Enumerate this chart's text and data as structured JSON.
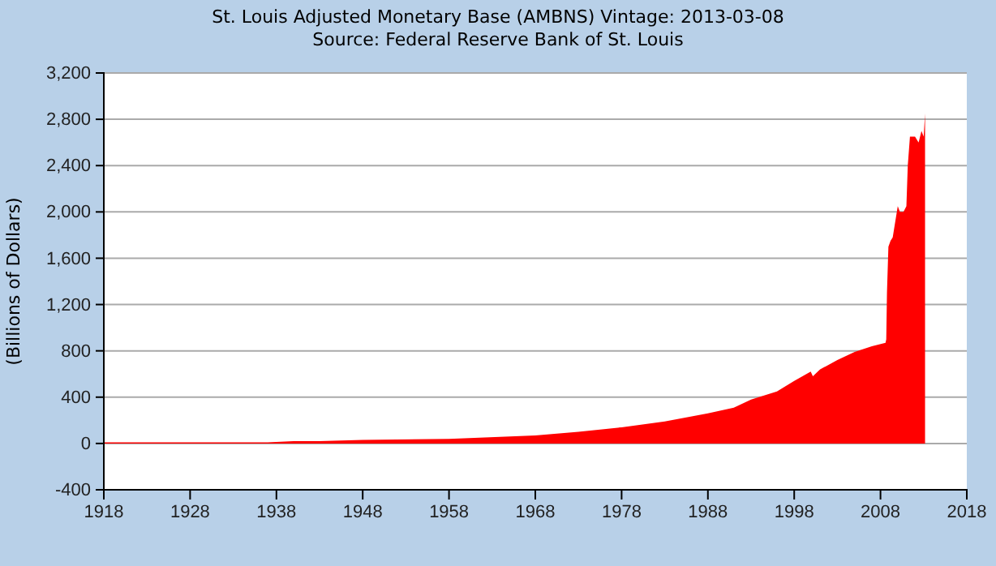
{
  "chart_data": {
    "type": "area",
    "title": "St. Louis Adjusted Monetary Base (AMBNS) Vintage: 2013-03-08",
    "subtitle": "Source: Federal Reserve Bank of St. Louis",
    "ylabel": "(Billions of Dollars)",
    "x": [
      "1918-01",
      "1930-01",
      "1937-01",
      "1940-01",
      "1943-01",
      "1948-01",
      "1958-01",
      "1968-01",
      "1973-01",
      "1978-01",
      "1983-01",
      "1988-01",
      "1991-01",
      "1993-01",
      "1996-01",
      "1998-01",
      "1999-12",
      "2000-03",
      "2001-01",
      "2003-01",
      "2005-01",
      "2007-01",
      "2008-08",
      "2008-09",
      "2008-10",
      "2008-12",
      "2009-03",
      "2009-06",
      "2010-01",
      "2010-04",
      "2010-09",
      "2011-01",
      "2011-03",
      "2011-06",
      "2012-01",
      "2012-06",
      "2012-10",
      "2013-01",
      "2013-02",
      "2013-03"
    ],
    "series": [
      {
        "color": "#ff0000",
        "values": [
          10,
          10,
          10,
          20,
          20,
          30,
          40,
          70,
          100,
          140,
          190,
          260,
          310,
          380,
          450,
          540,
          620,
          580,
          640,
          720,
          790,
          840,
          870,
          900,
          1300,
          1700,
          1750,
          1780,
          2050,
          2000,
          2000,
          2050,
          2400,
          2650,
          2650,
          2600,
          2700,
          2650,
          2750,
          2850
        ]
      }
    ],
    "ylim": [
      -400,
      3200
    ],
    "yticks": [
      {
        "value": -400,
        "label": "-400"
      },
      {
        "value": 0,
        "label": "0"
      },
      {
        "value": 400,
        "label": "400"
      },
      {
        "value": 800,
        "label": "800"
      },
      {
        "value": 1200,
        "label": "1,200"
      },
      {
        "value": 1600,
        "label": "1,600"
      },
      {
        "value": 2000,
        "label": "2,000"
      },
      {
        "value": 2400,
        "label": "2,400"
      },
      {
        "value": 2800,
        "label": "2,800"
      },
      {
        "value": 3200,
        "label": "3,200"
      }
    ],
    "xlim": [
      "1918",
      "2018"
    ],
    "xticks": [
      {
        "value": "1918",
        "label": "1918"
      },
      {
        "value": "1928",
        "label": "1928"
      },
      {
        "value": "1938",
        "label": "1938"
      },
      {
        "value": "1948",
        "label": "1948"
      },
      {
        "value": "1958",
        "label": "1958"
      },
      {
        "value": "1968",
        "label": "1968"
      },
      {
        "value": "1978",
        "label": "1978"
      },
      {
        "value": "1988",
        "label": "1988"
      },
      {
        "value": "1998",
        "label": "1998"
      },
      {
        "value": "2008",
        "label": "2008"
      },
      {
        "value": "2018",
        "label": "2018"
      }
    ],
    "grid": "y"
  }
}
